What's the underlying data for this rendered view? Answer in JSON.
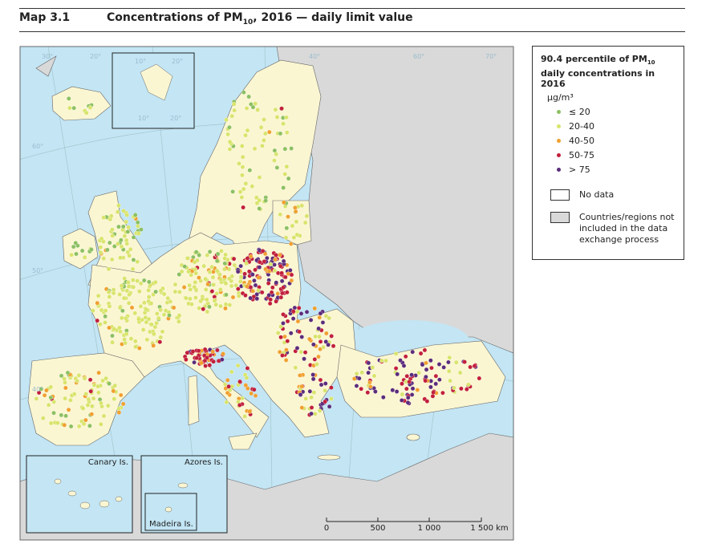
{
  "header": {
    "label": "Map 3.1",
    "title": {
      "text": "Concentrations of PM",
      "sub": "10",
      "rest": ", 2016 — daily limit value"
    }
  },
  "legend": {
    "title": {
      "text": "90.4 percentile of PM",
      "sub": "10",
      "rest": " daily concentrations in 2016"
    },
    "unit": "μg/m³",
    "classes": [
      {
        "label": "≤ 20",
        "color": "#8cc063"
      },
      {
        "label": "20-40",
        "color": "#d8e46c"
      },
      {
        "label": "40-50",
        "color": "#f0a030"
      },
      {
        "label": "50-75",
        "color": "#c11f3c"
      },
      {
        "label": "> 75",
        "color": "#5b2c7c"
      }
    ],
    "no_data": "No data",
    "not_included": "Countries/regions not included in the data exchange process"
  },
  "insets": [
    "Canary Is.",
    "Azores Is.",
    "Madeira Is."
  ],
  "scale_bar": [
    "0",
    "500",
    "1 000",
    "1 500 km"
  ],
  "graticule": [
    "30°",
    "20°",
    "10°",
    "20°",
    "40°",
    "60°",
    "70°",
    "60°",
    "50°",
    "40°",
    "10°",
    "20°"
  ]
}
